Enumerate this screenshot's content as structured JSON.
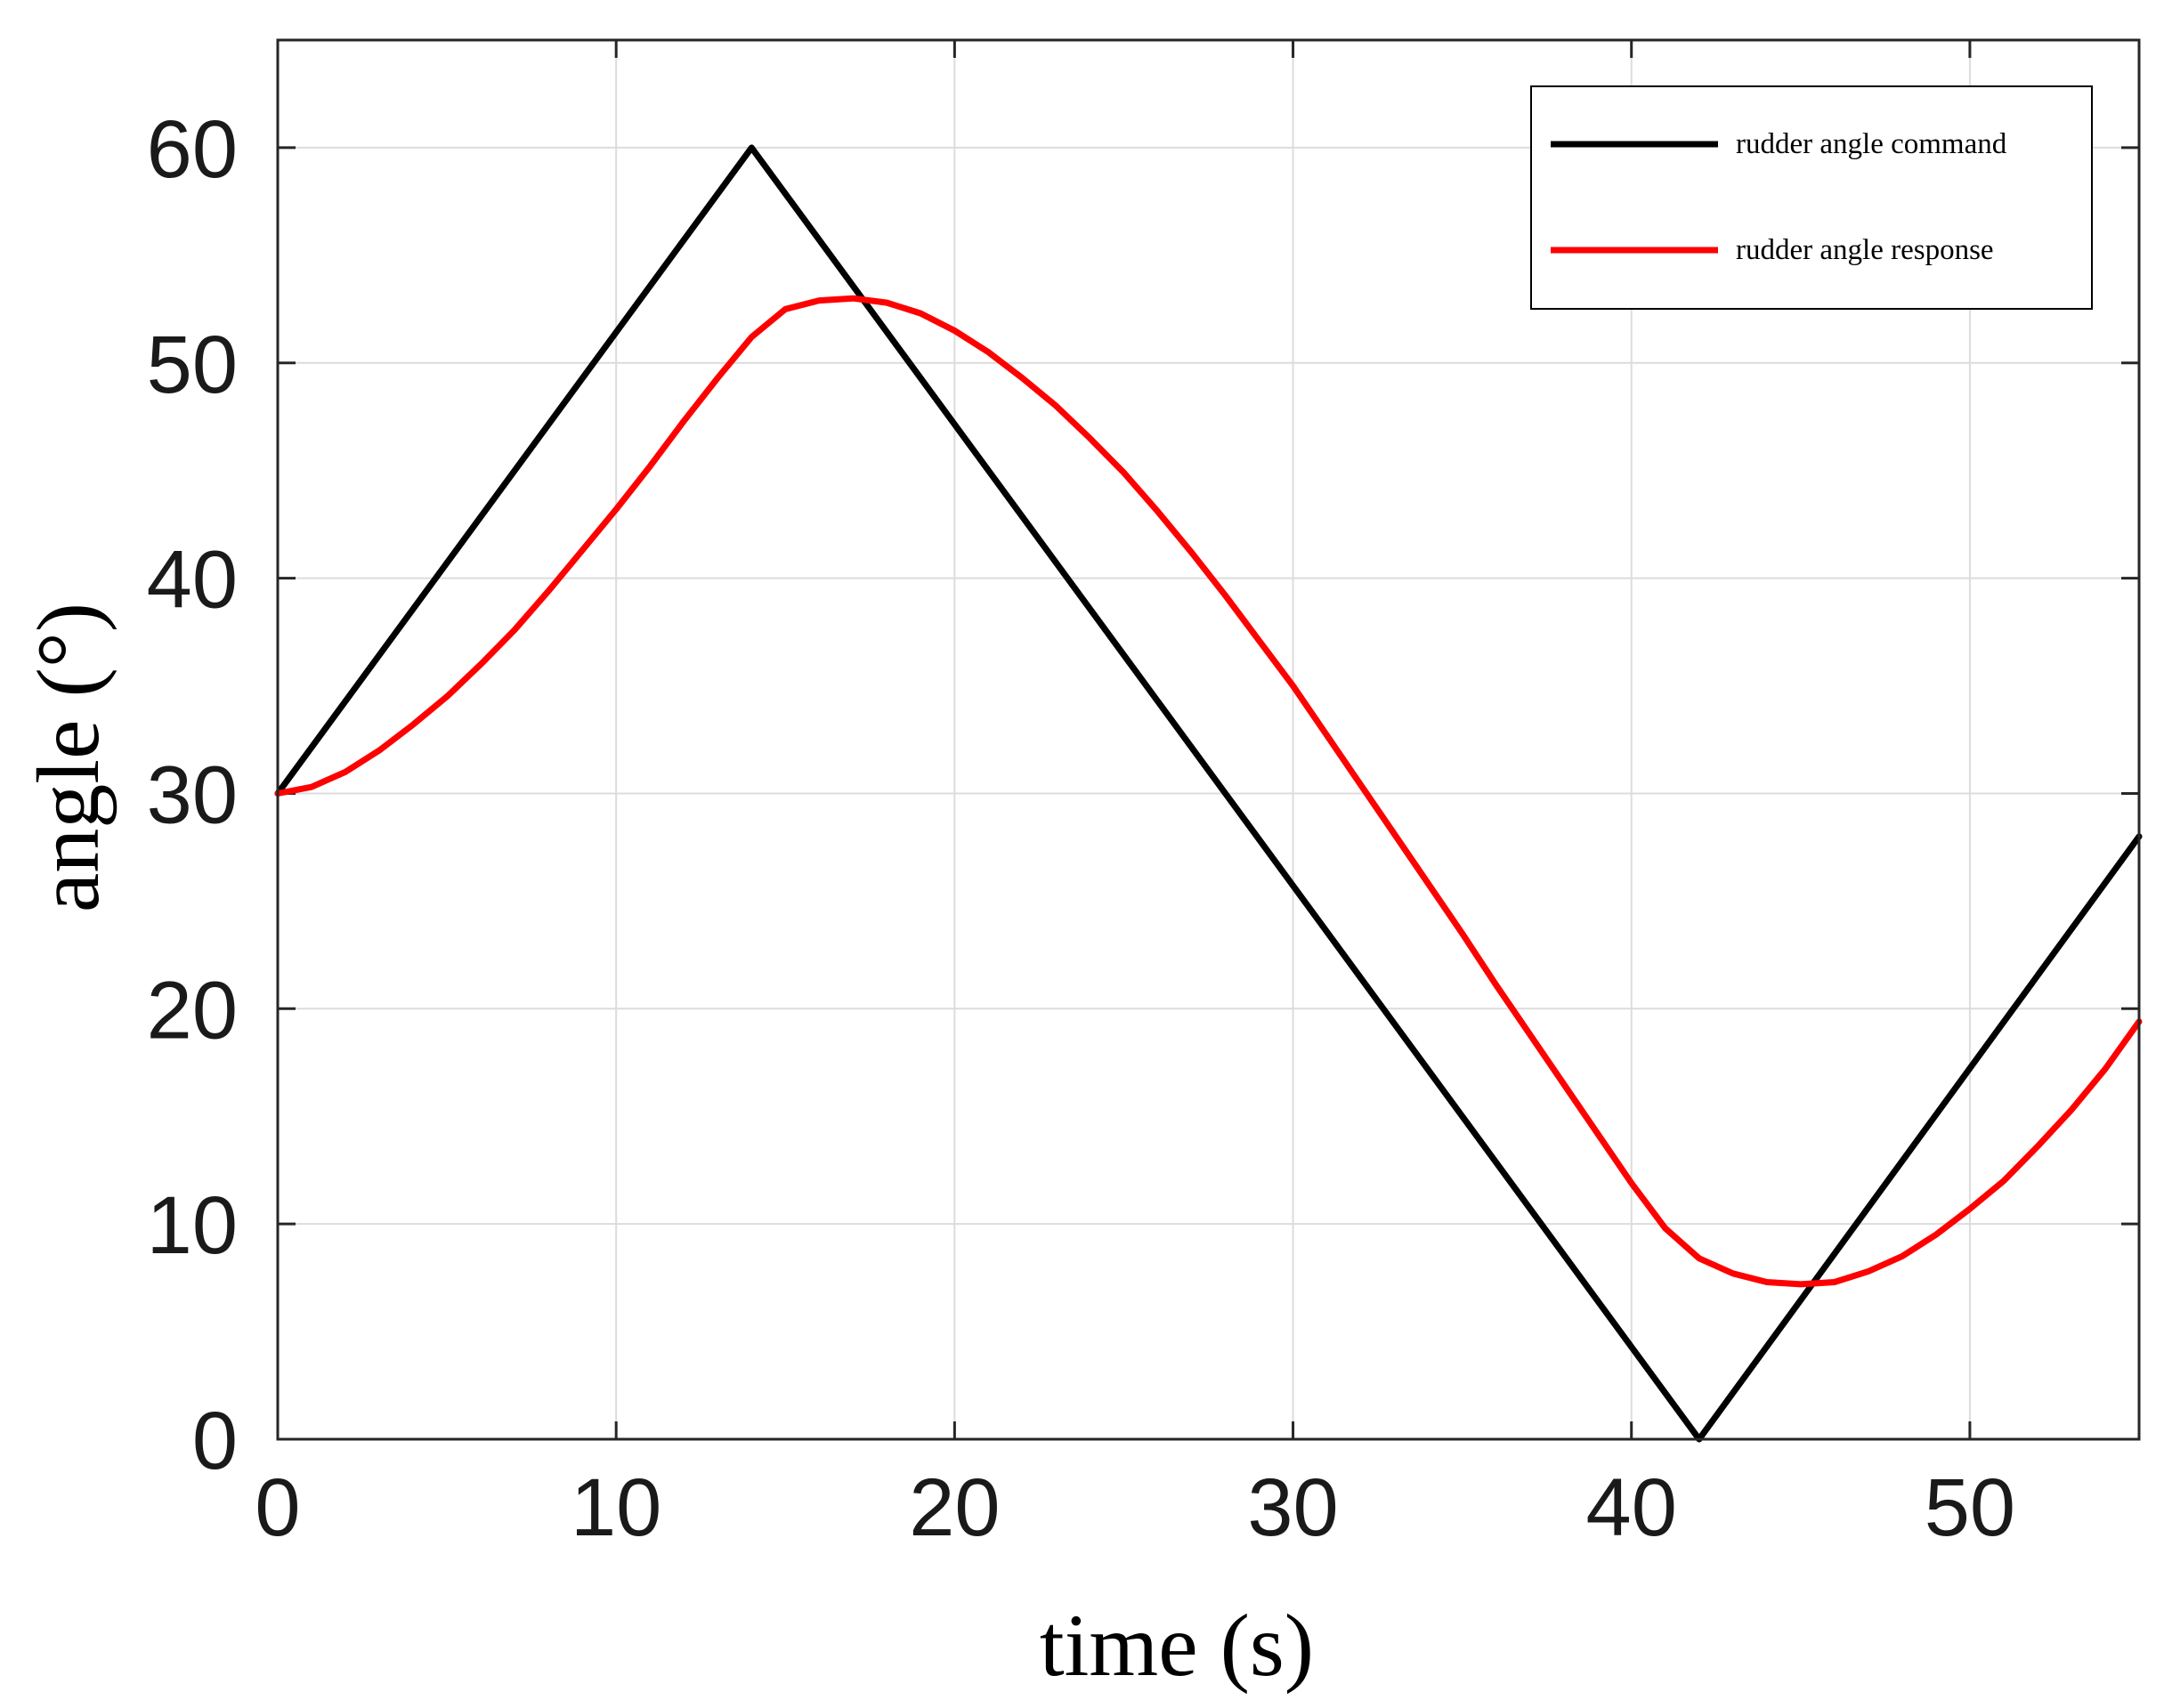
{
  "chart_data": {
    "type": "line",
    "xlabel": "time (s)",
    "ylabel": "angle (°)",
    "xlim": [
      0,
      55
    ],
    "ylim": [
      0,
      65
    ],
    "xticks": [
      0,
      10,
      20,
      30,
      40,
      50
    ],
    "yticks": [
      0,
      10,
      20,
      30,
      40,
      50,
      60
    ],
    "grid": true,
    "legend_position": "top-right",
    "series": [
      {
        "name": "rudder angle command",
        "color": "#000000",
        "x": [
          0,
          14,
          42,
          55
        ],
        "y": [
          30,
          60,
          0,
          28
        ]
      },
      {
        "name": "rudder angle response",
        "color": "#ff0000",
        "x": [
          0,
          1,
          2,
          3,
          4,
          5,
          6,
          7,
          8,
          9,
          10,
          11,
          12,
          13,
          14,
          15,
          16,
          17,
          18,
          19,
          20,
          21,
          22,
          23,
          24,
          25,
          26,
          27,
          28,
          29,
          30,
          31,
          32,
          33,
          34,
          35,
          36,
          37,
          38,
          39,
          40,
          41,
          42,
          43,
          44,
          45,
          46,
          47,
          48,
          49,
          50,
          51,
          52,
          53,
          54,
          55
        ],
        "y": [
          30,
          30.3,
          31,
          32,
          33.2,
          34.5,
          36,
          37.6,
          39.4,
          41.3,
          43.2,
          45.2,
          47.3,
          49.3,
          51.2,
          52.5,
          52.9,
          53,
          52.8,
          52.3,
          51.5,
          50.5,
          49.3,
          48,
          46.5,
          44.9,
          43.1,
          41.2,
          39.2,
          37.1,
          35,
          32.7,
          30.4,
          28.1,
          25.8,
          23.5,
          21.1,
          18.8,
          16.5,
          14.2,
          11.9,
          9.8,
          8.4,
          7.7,
          7.3,
          7.2,
          7.3,
          7.8,
          8.5,
          9.5,
          10.7,
          12,
          13.6,
          15.3,
          17.2,
          19.4
        ]
      }
    ]
  }
}
